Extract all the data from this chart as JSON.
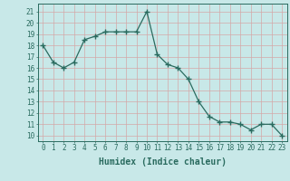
{
  "x": [
    0,
    1,
    2,
    3,
    4,
    5,
    6,
    7,
    8,
    9,
    10,
    11,
    12,
    13,
    14,
    15,
    16,
    17,
    18,
    19,
    20,
    21,
    22,
    23
  ],
  "y": [
    18.0,
    16.5,
    16.0,
    16.5,
    18.5,
    18.8,
    19.2,
    19.2,
    19.2,
    19.2,
    21.0,
    17.2,
    16.3,
    16.0,
    15.0,
    13.0,
    11.7,
    11.2,
    11.2,
    11.0,
    10.5,
    11.0,
    11.0,
    10.0
  ],
  "line_color": "#2a6b5f",
  "marker": "+",
  "marker_size": 4,
  "bg_color": "#c8e8e8",
  "grid_color_v": "#d4a8a8",
  "grid_color_h": "#d4a8a8",
  "xlabel": "Humidex (Indice chaleur)",
  "ylabel_ticks": [
    10,
    11,
    12,
    13,
    14,
    15,
    16,
    17,
    18,
    19,
    20,
    21
  ],
  "ylim": [
    9.5,
    21.7
  ],
  "xlim": [
    -0.5,
    23.5
  ],
  "tick_fontsize": 5.5,
  "xlabel_fontsize": 7
}
